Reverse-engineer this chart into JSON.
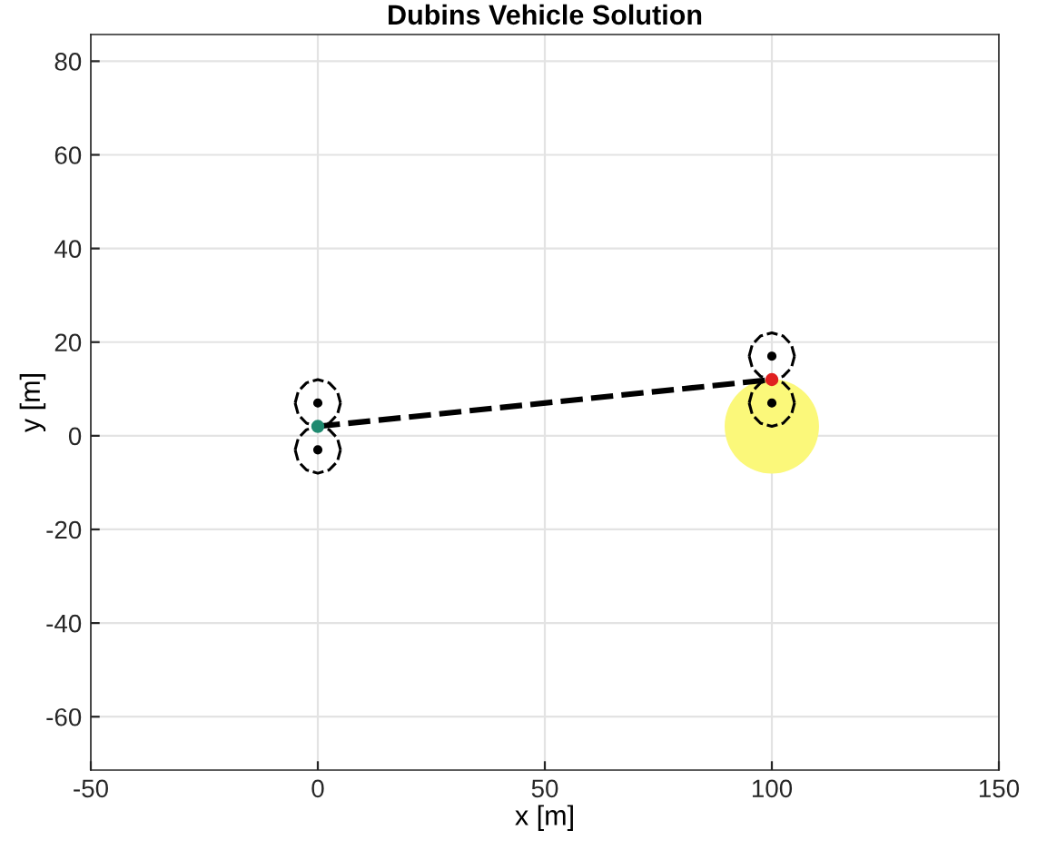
{
  "chart_data": {
    "type": "line",
    "title": "Dubins Vehicle Solution",
    "xlabel": "x [m]",
    "ylabel": "y [m]",
    "xlim": [
      -50,
      150
    ],
    "ylim": [
      -71.4,
      85.7
    ],
    "xticks": [
      -50,
      0,
      50,
      100,
      150
    ],
    "yticks": [
      -60,
      -40,
      -20,
      0,
      20,
      40,
      60,
      80
    ],
    "grid": true,
    "line_style": "dashed",
    "series": [
      {
        "type": "bubble",
        "color": "#fbf87a",
        "x": [
          100
        ],
        "values": [
          2
        ],
        "sizes": [
          1
        ]
      },
      {
        "color": "#000000",
        "x": [
          0,
          100
        ],
        "values": [
          2,
          12
        ]
      },
      {
        "color": "#000000",
        "x": [
          -5,
          -4.3,
          -2.5,
          0,
          2.5,
          4.3,
          5
        ],
        "values": [
          7,
          9.5,
          11.3,
          12,
          11.3,
          9.5,
          7
        ]
      },
      {
        "color": "#000000",
        "x": [
          -5,
          -4.3,
          -2.5,
          0,
          2.5,
          4.3,
          5
        ],
        "values": [
          7,
          4.5,
          2.7,
          2,
          2.7,
          4.5,
          7
        ]
      },
      {
        "color": "#000000",
        "x": [
          -5,
          -4.3,
          -2.5,
          0,
          2.5,
          4.3,
          5
        ],
        "values": [
          -3,
          -0.5,
          1.3,
          2,
          1.3,
          -0.5,
          -3
        ]
      },
      {
        "color": "#000000",
        "x": [
          -5,
          -4.3,
          -2.5,
          0,
          2.5,
          4.3,
          5
        ],
        "values": [
          -3,
          -5.5,
          -7.3,
          -8,
          -7.3,
          -5.5,
          -3
        ]
      },
      {
        "color": "#000000",
        "x": [
          95,
          95.7,
          97.5,
          100,
          102.5,
          104.3,
          105
        ],
        "values": [
          17,
          19.5,
          21.3,
          22,
          21.3,
          19.5,
          17
        ]
      },
      {
        "color": "#000000",
        "x": [
          95,
          95.7,
          97.5,
          100,
          102.5,
          104.3,
          105
        ],
        "values": [
          17,
          14.5,
          12.7,
          12,
          12.7,
          14.5,
          17
        ]
      },
      {
        "color": "#000000",
        "x": [
          95,
          95.7,
          97.5,
          100,
          102.5,
          104.3,
          105
        ],
        "values": [
          7,
          9.5,
          11.3,
          12,
          11.3,
          9.5,
          7
        ]
      },
      {
        "color": "#000000",
        "x": [
          95,
          95.7,
          97.5,
          100,
          102.5,
          104.3,
          105
        ],
        "values": [
          7,
          4.5,
          2.7,
          2,
          2.7,
          4.5,
          7
        ]
      },
      {
        "type": "scatter",
        "marker": "circle",
        "color": "#000000",
        "x": [
          0,
          0,
          100,
          100
        ],
        "values": [
          7,
          -3,
          17,
          7
        ]
      },
      {
        "type": "scatter",
        "marker": "circle",
        "color": "#1f8a70",
        "x": [
          0
        ],
        "values": [
          2
        ]
      },
      {
        "type": "scatter",
        "marker": "circle",
        "color": "#e02020",
        "x": [
          100
        ],
        "values": [
          12
        ]
      }
    ]
  }
}
